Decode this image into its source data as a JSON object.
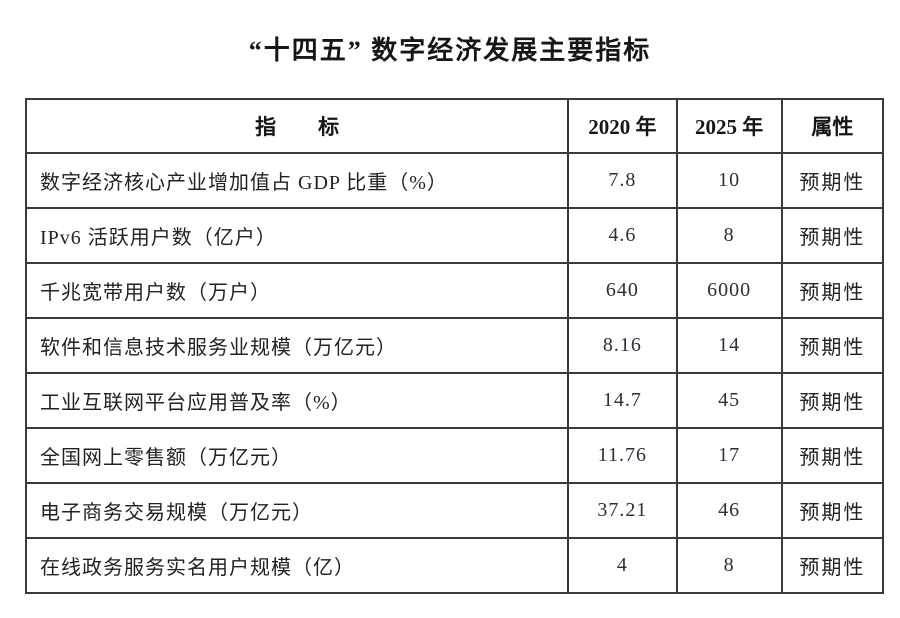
{
  "title": "“十四五” 数字经济发展主要指标",
  "table": {
    "headers": [
      "指　　标",
      "2020 年",
      "2025 年",
      "属性"
    ],
    "rows": [
      {
        "indicator": "数字经济核心产业增加值占 GDP 比重（%）",
        "y2020": "7.8",
        "y2025": "10",
        "attr": "预期性"
      },
      {
        "indicator": "IPv6 活跃用户数（亿户）",
        "y2020": "4.6",
        "y2025": "8",
        "attr": "预期性"
      },
      {
        "indicator": "千兆宽带用户数（万户）",
        "y2020": "640",
        "y2025": "6000",
        "attr": "预期性"
      },
      {
        "indicator": "软件和信息技术服务业规模（万亿元）",
        "y2020": "8.16",
        "y2025": "14",
        "attr": "预期性"
      },
      {
        "indicator": "工业互联网平台应用普及率（%）",
        "y2020": "14.7",
        "y2025": "45",
        "attr": "预期性"
      },
      {
        "indicator": "全国网上零售额（万亿元）",
        "y2020": "11.76",
        "y2025": "17",
        "attr": "预期性"
      },
      {
        "indicator": "电子商务交易规模（万亿元）",
        "y2020": "37.21",
        "y2025": "46",
        "attr": "预期性"
      },
      {
        "indicator": "在线政务服务实名用户规模（亿）",
        "y2020": "4",
        "y2025": "8",
        "attr": "预期性"
      }
    ]
  },
  "chart_data": {
    "type": "table",
    "title": "“十四五” 数字经济发展主要指标",
    "columns": [
      "指标",
      "2020 年",
      "2025 年",
      "属性"
    ],
    "series": [
      {
        "name": "2020 年",
        "values": [
          7.8,
          4.6,
          640,
          8.16,
          14.7,
          11.76,
          37.21,
          4
        ]
      },
      {
        "name": "2025 年",
        "values": [
          10,
          8,
          6000,
          14,
          45,
          17,
          46,
          8
        ]
      }
    ],
    "categories": [
      "数字经济核心产业增加值占 GDP 比重（%）",
      "IPv6 活跃用户数（亿户）",
      "千兆宽带用户数（万户）",
      "软件和信息技术服务业规模（万亿元）",
      "工业互联网平台应用普及率（%）",
      "全国网上零售额（万亿元）",
      "电子商务交易规模（万亿元）",
      "在线政务服务实名用户规模（亿）"
    ],
    "attribute_column_values": [
      "预期性",
      "预期性",
      "预期性",
      "预期性",
      "预期性",
      "预期性",
      "预期性",
      "预期性"
    ]
  },
  "colors": {
    "border": "#3a3a3a",
    "text": "#1e1e1e",
    "background": "#ffffff"
  }
}
